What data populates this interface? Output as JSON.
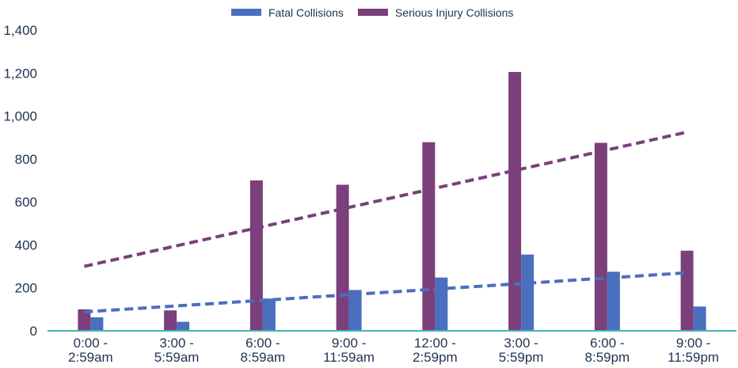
{
  "chart_data": {
    "type": "bar",
    "title": "",
    "xlabel": "",
    "ylabel": "",
    "categories": [
      [
        "0:00 -",
        "2:59am"
      ],
      [
        "3:00 -",
        "5:59am"
      ],
      [
        "6:00 -",
        "8:59am"
      ],
      [
        "9:00 -",
        "11:59am"
      ],
      [
        "12:00 -",
        "2:59pm"
      ],
      [
        "3:00 -",
        "5:59pm"
      ],
      [
        "6:00 -",
        "8:59pm"
      ],
      [
        "9:00 -",
        "11:59pm"
      ]
    ],
    "ylim": [
      0,
      1400
    ],
    "y_ticks": [
      "0",
      "200",
      "400",
      "600",
      "800",
      "1,000",
      "1,200",
      "1,400"
    ],
    "y_tick_values": [
      0,
      200,
      400,
      600,
      800,
      1000,
      1200,
      1400
    ],
    "grid": false,
    "legend_position": "top-center",
    "series": [
      {
        "name": "Serious Injury Collisions",
        "color": "#7b3f7c",
        "values": [
          100,
          95,
          700,
          680,
          878,
          1205,
          875,
          373
        ],
        "trendline": {
          "color": "#7b3f7c",
          "start": 300,
          "end": 925
        }
      },
      {
        "name": "Fatal Collisions",
        "color": "#4a6fbe",
        "values": [
          63,
          42,
          150,
          190,
          248,
          355,
          275,
          113
        ],
        "trendline": {
          "color": "#4a6fbe",
          "start": 88,
          "end": 270
        }
      }
    ],
    "legend_order": [
      "Fatal Collisions",
      "Serious Injury Collisions"
    ],
    "baseline_color": "#45b3b3"
  }
}
